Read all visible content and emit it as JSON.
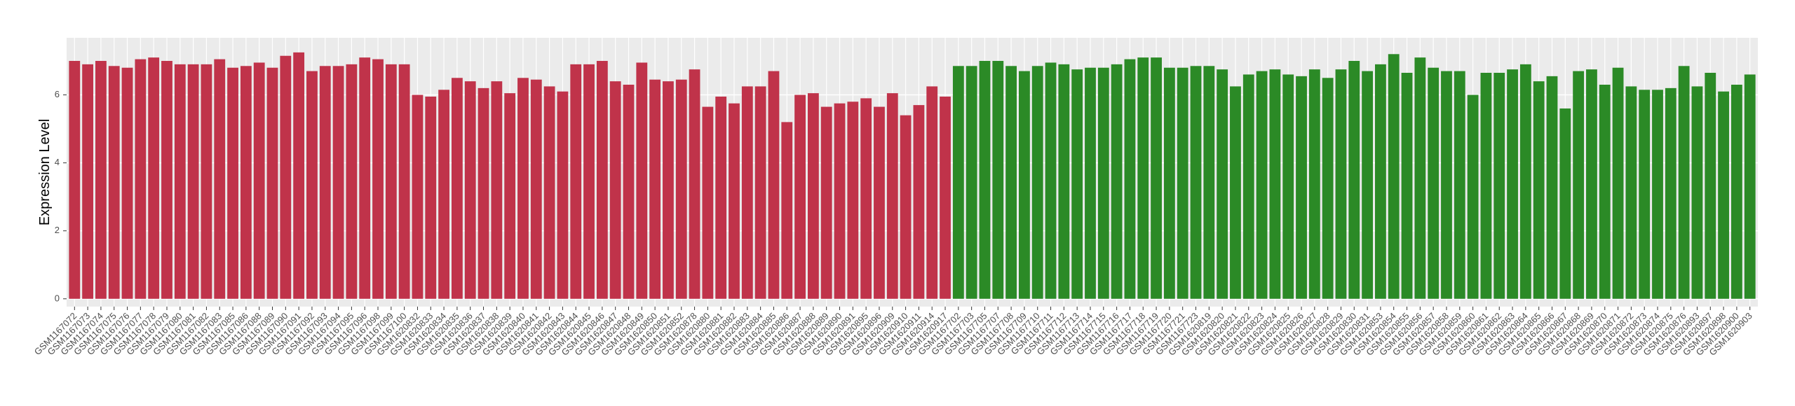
{
  "chart_data": {
    "type": "bar",
    "y_label": "Expression Level",
    "ylim": [
      -0.23,
      7.68
    ],
    "yticks": [
      0,
      2,
      4,
      6
    ],
    "grid": true,
    "series": [
      {
        "color": "#c0334a",
        "categories": [
          "GSM1167072",
          "GSM1167073",
          "GSM1167074",
          "GSM1167075",
          "GSM1167076",
          "GSM1167077",
          "GSM1167078",
          "GSM1167079",
          "GSM1167080",
          "GSM1167081",
          "GSM1167082",
          "GSM1167083",
          "GSM1167085",
          "GSM1167086",
          "GSM1167088",
          "GSM1167089",
          "GSM1167090",
          "GSM1167091",
          "GSM1167092",
          "GSM1167093",
          "GSM1167094",
          "GSM1167095",
          "GSM1167096",
          "GSM1167098",
          "GSM1167099",
          "GSM1167100",
          "GSM1620832",
          "GSM1620833",
          "GSM1620834",
          "GSM1620835",
          "GSM1620836",
          "GSM1620837",
          "GSM1620838",
          "GSM1620839",
          "GSM1620840",
          "GSM1620841",
          "GSM1620842",
          "GSM1620843",
          "GSM1620844",
          "GSM1620845",
          "GSM1620846",
          "GSM1620847",
          "GSM1620848",
          "GSM1620849",
          "GSM1620850",
          "GSM1620851",
          "GSM1620852",
          "GSM1620878",
          "GSM1620880",
          "GSM1620881",
          "GSM1620882",
          "GSM1620883",
          "GSM1620884",
          "GSM1620885",
          "GSM1620886",
          "GSM1620887",
          "GSM1620888",
          "GSM1620889",
          "GSM1620890",
          "GSM1620891",
          "GSM1620895",
          "GSM1620896",
          "GSM1620909",
          "GSM1620910",
          "GSM1620911",
          "GSM1620914",
          "GSM1620917"
        ],
        "values": [
          7.0,
          6.9,
          7.0,
          6.85,
          6.8,
          7.05,
          7.1,
          7.0,
          6.9,
          6.9,
          6.9,
          7.05,
          6.8,
          6.85,
          6.95,
          6.8,
          7.15,
          7.25,
          6.7,
          6.85,
          6.85,
          6.9,
          7.1,
          7.05,
          6.9,
          6.9,
          6.0,
          5.95,
          6.15,
          6.5,
          6.4,
          6.2,
          6.4,
          6.05,
          6.5,
          6.45,
          6.25,
          6.1,
          6.9,
          6.9,
          7.0,
          6.4,
          6.3,
          6.95,
          6.45,
          6.4,
          6.45,
          6.75,
          5.65,
          5.95,
          5.75,
          6.25,
          6.25,
          6.7,
          5.2,
          6.0,
          6.05,
          5.65,
          5.75,
          5.8,
          5.9,
          5.65,
          6.05,
          5.4,
          5.7,
          6.25,
          5.95
        ]
      },
      {
        "color": "#2b8a26",
        "categories": [
          "GSM1167702",
          "GSM1167703",
          "GSM1167705",
          "GSM1167707",
          "GSM1167708",
          "GSM1167709",
          "GSM1167710",
          "GSM1167711",
          "GSM1167712",
          "GSM1167713",
          "GSM1167714",
          "GSM1167715",
          "GSM1167716",
          "GSM1167717",
          "GSM1167718",
          "GSM1167719",
          "GSM1167720",
          "GSM1167721",
          "GSM1167723",
          "GSM1620819",
          "GSM1620820",
          "GSM1620821",
          "GSM1620822",
          "GSM1620823",
          "GSM1620824",
          "GSM1620825",
          "GSM1620826",
          "GSM1620827",
          "GSM1620828",
          "GSM1620829",
          "GSM1620830",
          "GSM1620831",
          "GSM1620853",
          "GSM1620854",
          "GSM1620855",
          "GSM1620856",
          "GSM1620857",
          "GSM1620858",
          "GSM1620859",
          "GSM1620860",
          "GSM1620861",
          "GSM1620862",
          "GSM1620863",
          "GSM1620864",
          "GSM1620865",
          "GSM1620866",
          "GSM1620867",
          "GSM1620868",
          "GSM1620869",
          "GSM1620870",
          "GSM1620871",
          "GSM1620872",
          "GSM1620873",
          "GSM1620874",
          "GSM1620875",
          "GSM1620876",
          "GSM1620893",
          "GSM1620897",
          "GSM1620898",
          "GSM1620900",
          "GSM1620903"
        ],
        "values": [
          6.85,
          6.85,
          7.0,
          7.0,
          6.85,
          6.7,
          6.85,
          6.95,
          6.9,
          6.75,
          6.8,
          6.8,
          6.9,
          7.05,
          7.1,
          7.1,
          6.8,
          6.8,
          6.85,
          6.85,
          6.75,
          6.25,
          6.6,
          6.7,
          6.75,
          6.6,
          6.55,
          6.75,
          6.5,
          6.75,
          7.0,
          6.7,
          6.9,
          7.2,
          6.65,
          7.1,
          6.8,
          6.7,
          6.7,
          6.0,
          6.65,
          6.65,
          6.75,
          6.9,
          6.4,
          6.55,
          5.6,
          6.7,
          6.75,
          6.3,
          6.8,
          6.25,
          6.15,
          6.15,
          6.2,
          6.85,
          6.25,
          6.65,
          6.1,
          6.3,
          6.6
        ]
      }
    ]
  }
}
